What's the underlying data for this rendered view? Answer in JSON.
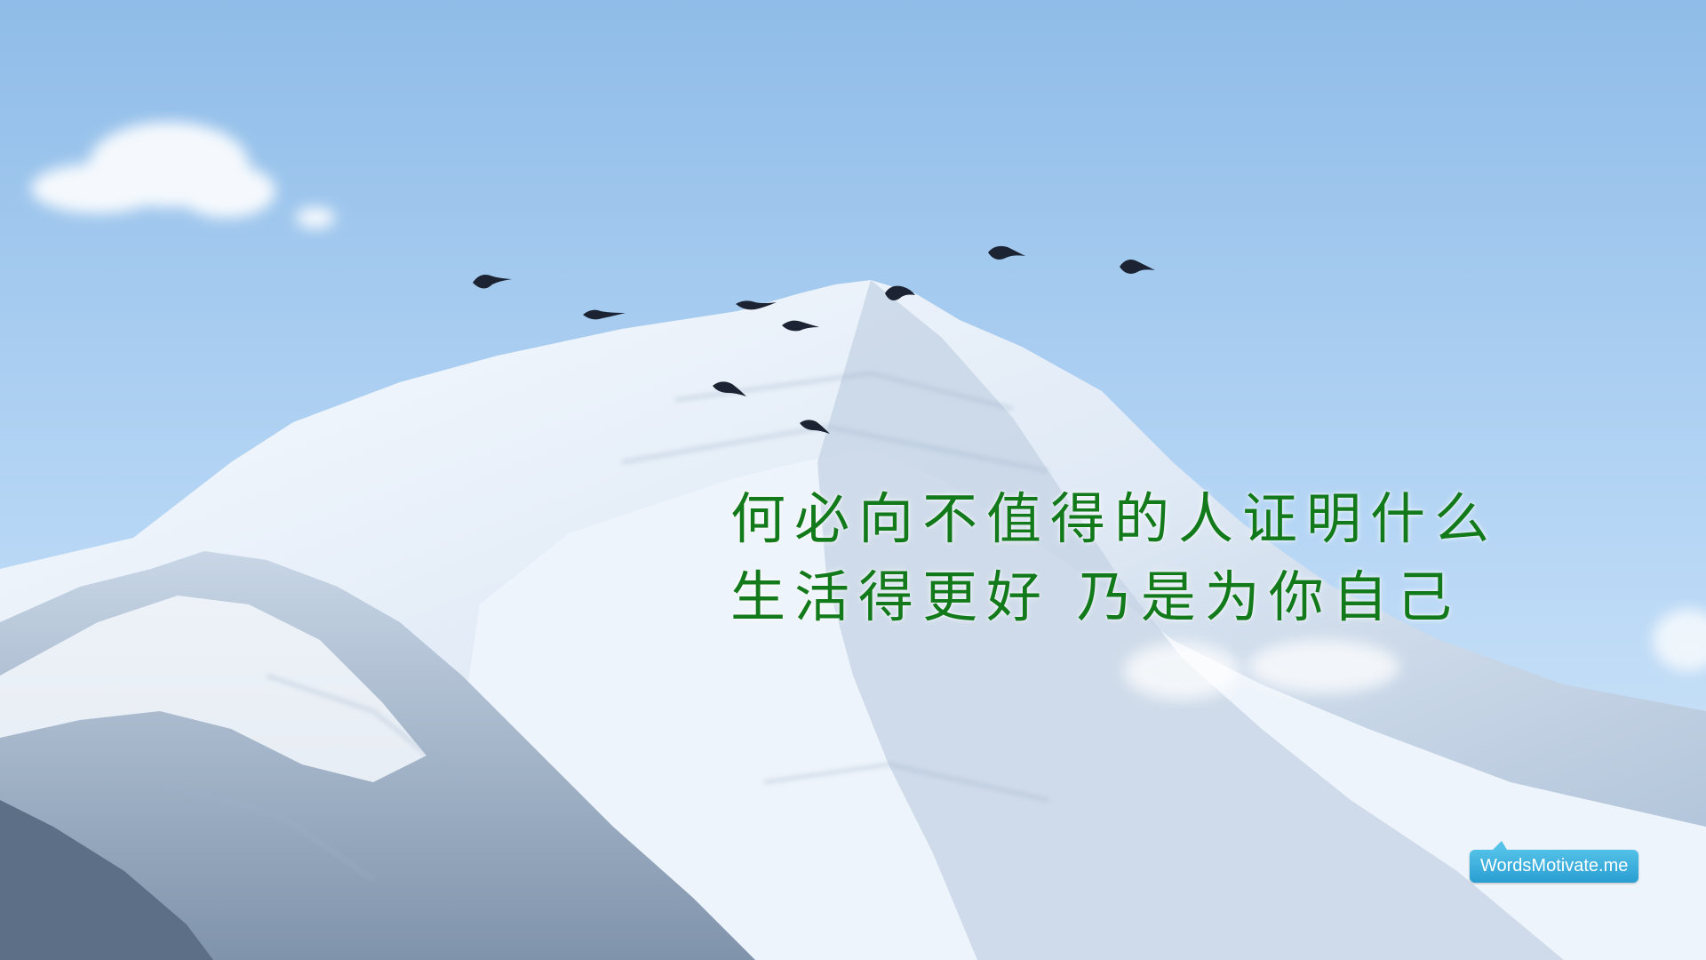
{
  "quote": {
    "lines": [
      "何必向不值得的人证明什么",
      "生活得更好  乃是为你自己"
    ],
    "color": "#137a1c"
  },
  "badge": {
    "label": "WordsMotivate.me",
    "color": "#2a9ed2"
  },
  "scene": {
    "subject": "snow-capped mountain peak",
    "bird_count": 9,
    "sky_color": "#9fc7f0"
  }
}
